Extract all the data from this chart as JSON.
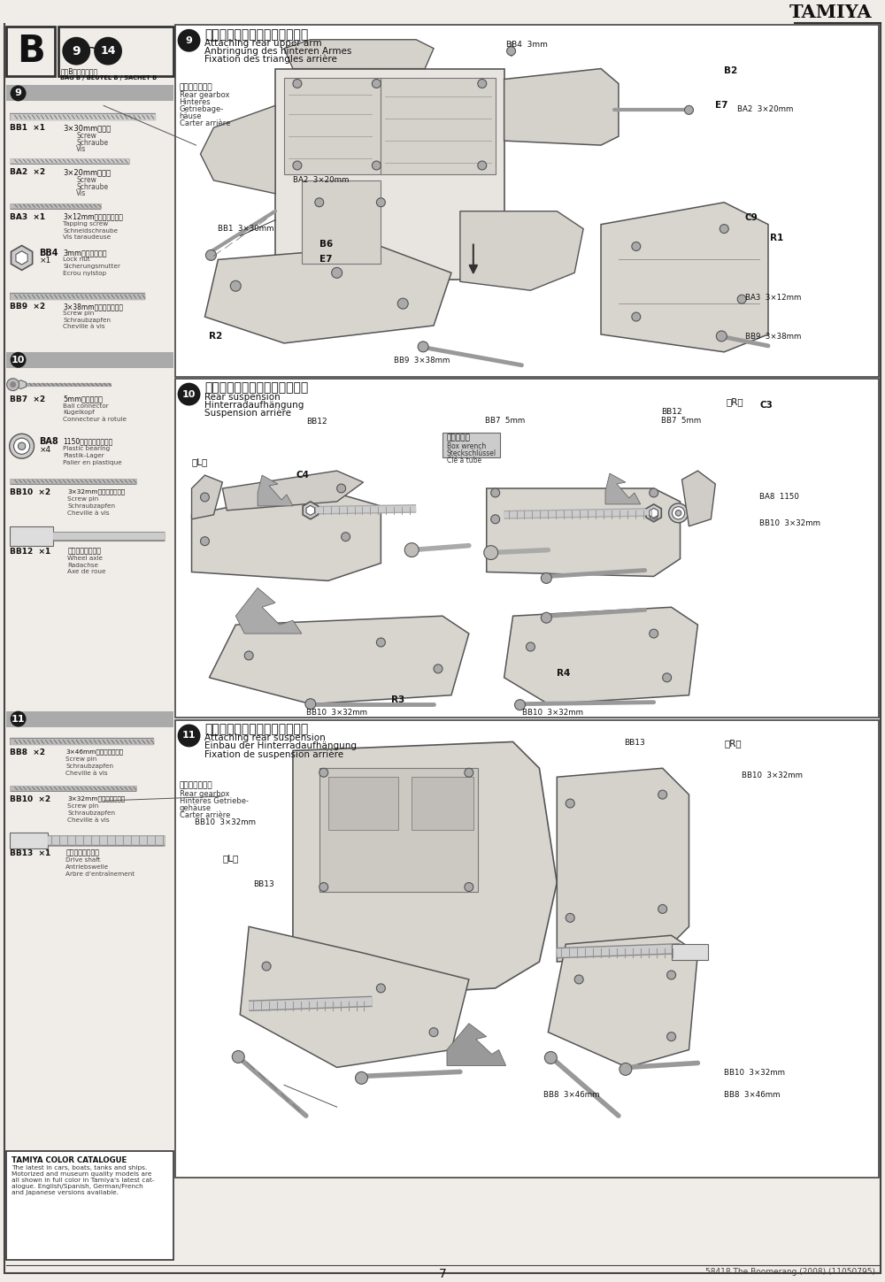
{
  "title": "TAMIYA",
  "page_number": "7",
  "footer_text": "58418 The Boomerang (2008) (11050795)",
  "bg": "#f0ede8",
  "white": "#ffffff",
  "dark": "#1a1a1a",
  "gray": "#999999",
  "med_gray": "#cccccc",
  "light_gray": "#e0ddd8",
  "border": "#555555",
  "step9_title_jp": "リヤアッパーアームの取り付け",
  "step9_title_en": "Attaching rear upper arm",
  "step9_title_de": "Anbringung des hinteren Armes",
  "step9_title_fr": "Fixation des triangles arrière",
  "step10_title_jp": "リヤサスペンションの組み立て",
  "step10_title_en": "Rear suspension",
  "step10_title_de": "Hinterradaufhängung",
  "step10_title_fr": "Suspension arrière",
  "step11_title_jp": "リヤサスペンションの取り付け",
  "step11_title_en": "Attaching rear suspension",
  "step11_title_de": "Einbau der Hinterradaufhängung",
  "step11_title_fr": "Fixation de suspension arrière",
  "colour_cat_title": "TAMIYA COLOR CATALOGUE",
  "colour_cat_body": "The latest in cars, boats, tanks and ships.\nMotorized and museum quality models are\nall shown in full color in Tamiya's latest cat-\nalogue. English/Spanish, German/French\nand Japanese versions available.",
  "bag_note_jp": "袋詮Bを使用します",
  "bag_note_en": "BAG B / BEUTEL B / SACHET B"
}
